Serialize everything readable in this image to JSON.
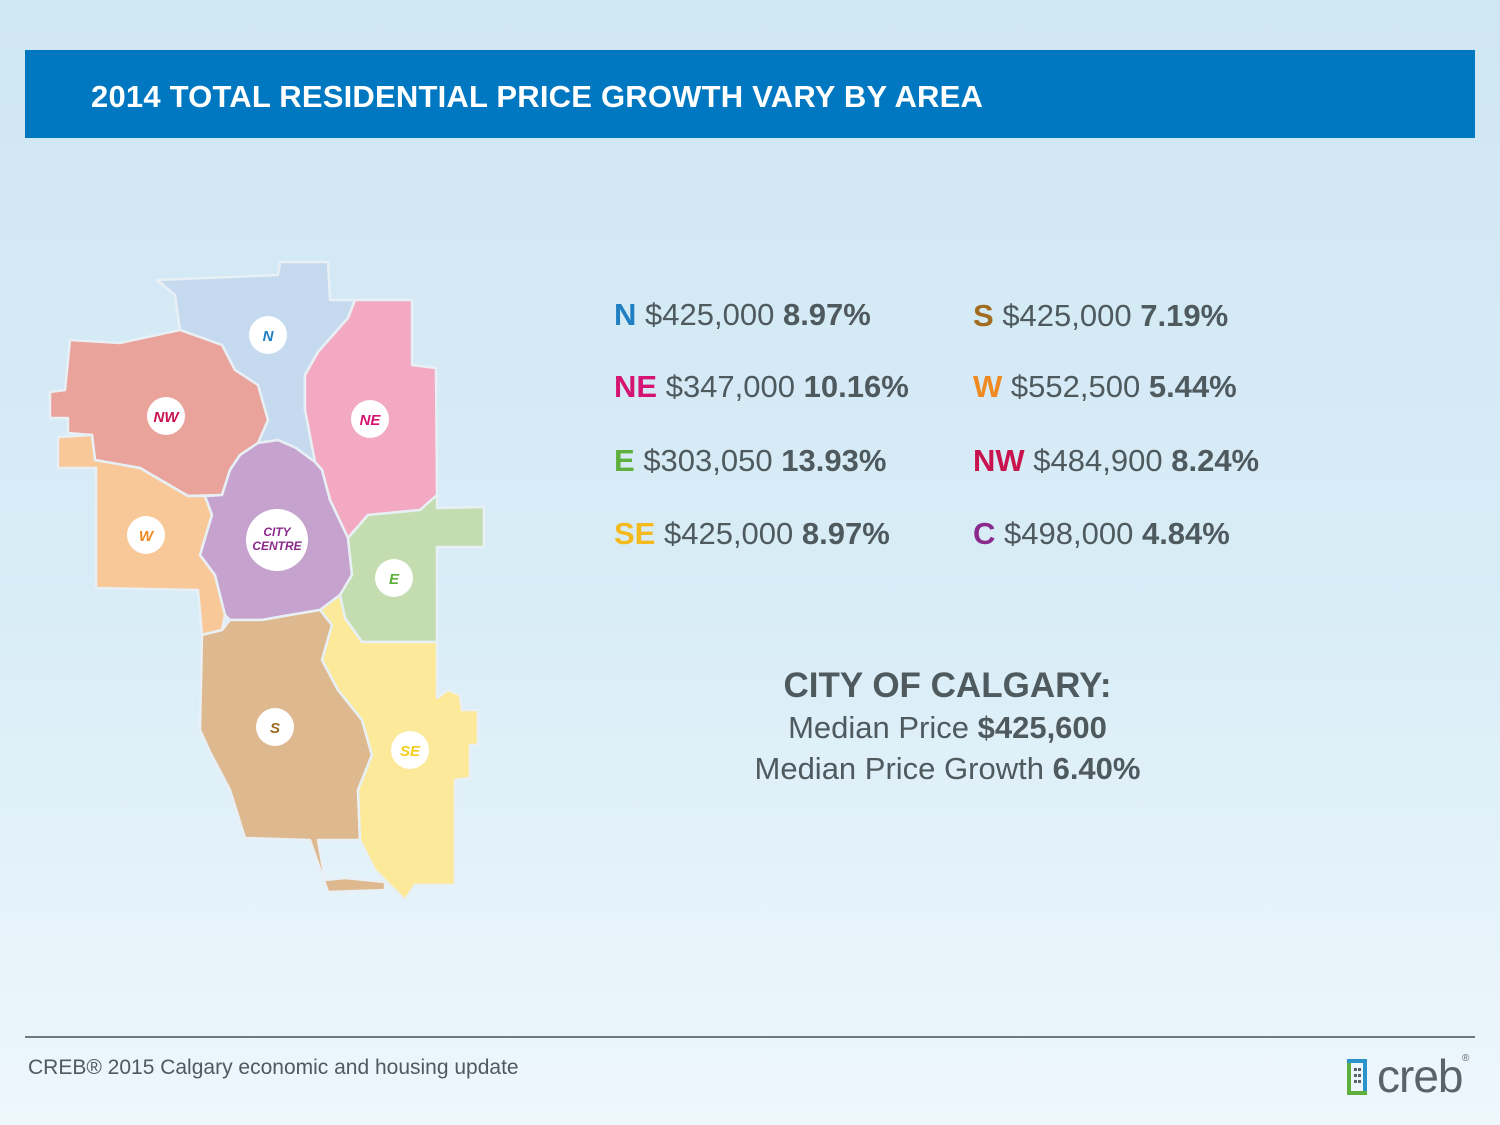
{
  "title": "2014 TOTAL RESIDENTIAL PRICE GROWTH VARY BY AREA",
  "map": {
    "regions": [
      {
        "label": "N",
        "fill": "#c5d9ef",
        "badge_color": "#1f7fc2"
      },
      {
        "label": "NW",
        "fill": "#e9a39b",
        "badge_color": "#c8134e"
      },
      {
        "label": "NE",
        "fill": "#f2a9c1",
        "badge_color": "#d41470"
      },
      {
        "label": "W",
        "fill": "#f8c899",
        "badge_color": "#ef8a22"
      },
      {
        "label": "CITY",
        "label2": "CENTRE",
        "fill": "#c6a3cf",
        "badge_color": "#8b2a8c"
      },
      {
        "label": "E",
        "fill": "#c4ddb0",
        "badge_color": "#5faf3c"
      },
      {
        "label": "S",
        "fill": "#deb98f",
        "badge_color": "#9a6a1f"
      },
      {
        "label": "SE",
        "fill": "#fde99a",
        "badge_color": "#f4cd1d"
      }
    ]
  },
  "stats": [
    {
      "code": "N",
      "price": "$425,000",
      "growth": "8.97%",
      "color": "#1f7fc2"
    },
    {
      "code": "S",
      "price": "$425,000",
      "growth": "7.19%",
      "color": "#a26d22"
    },
    {
      "code": "NE",
      "price": "$347,000",
      "growth": "10.16%",
      "color": "#d41470"
    },
    {
      "code": "W",
      "price": "$552,500",
      "growth": "5.44%",
      "color": "#ef8a22"
    },
    {
      "code": "E",
      "price": "$303,050",
      "growth": "13.93%",
      "color": "#5faf3c"
    },
    {
      "code": "NW",
      "price": "$484,900",
      "growth": "8.24%",
      "color": "#c8134e"
    },
    {
      "code": "SE",
      "price": "$425,000",
      "growth": "8.97%",
      "color": "#f4b91d"
    },
    {
      "code": "C",
      "price": "$498,000",
      "growth": "4.84%",
      "color": "#8b2a8c"
    }
  ],
  "summary": {
    "heading": "CITY OF CALGARY:",
    "median_price_label": "Median Price",
    "median_price_value": "$425,600",
    "median_growth_label": "Median Price Growth",
    "median_growth_value": "6.40%"
  },
  "footer": {
    "text": "CREB® 2015 Calgary economic and housing update",
    "logo_text": "creb",
    "logo_reg": "®"
  }
}
